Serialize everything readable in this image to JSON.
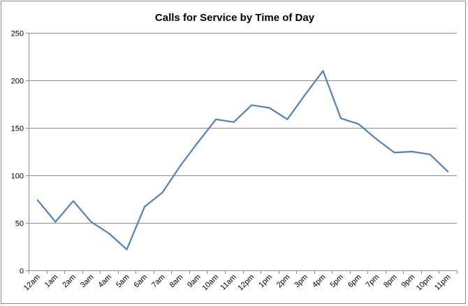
{
  "chart_data": {
    "type": "line",
    "title": "Calls for Service by Time of Day",
    "xlabel": "",
    "ylabel": "",
    "ylim": [
      0,
      250
    ],
    "yticks": [
      "0",
      "50",
      "100",
      "150",
      "200",
      "250"
    ],
    "grid": true,
    "categories": [
      "12am",
      "1am",
      "2am",
      "3am",
      "4am",
      "5am",
      "6am",
      "7am",
      "8am",
      "9am",
      "10am",
      "11am",
      "12pm",
      "1pm",
      "2pm",
      "3pm",
      "4pm",
      "5pm",
      "6pm",
      "7pm",
      "8pm",
      "9pm",
      "10pm",
      "11pm"
    ],
    "series": [
      {
        "color": "#4f81bd",
        "values": [
          74,
          51,
          73,
          51,
          39,
          22,
          67,
          82,
          110,
          135,
          159,
          156,
          174,
          171,
          159,
          185,
          210,
          160,
          154,
          138,
          124,
          125,
          122,
          104
        ]
      }
    ]
  }
}
